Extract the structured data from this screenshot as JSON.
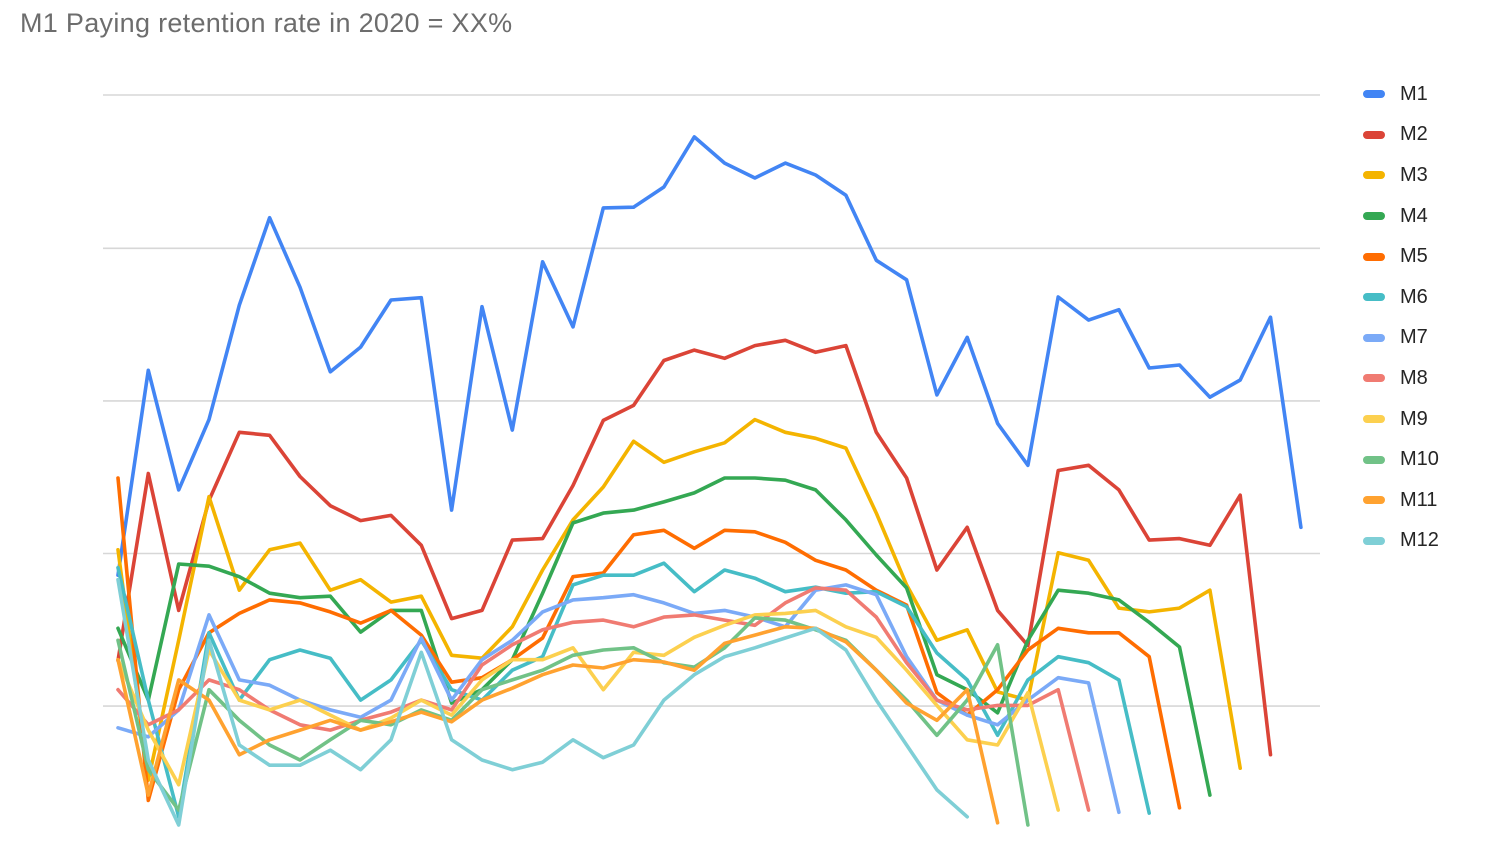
{
  "chart_data": {
    "type": "line",
    "title": "M1 Paying retention rate in 2020 = XX%",
    "title_color": "#6d6d6d",
    "xlabel": "",
    "ylabel": "",
    "x_axis_tick_labels": "none visible",
    "y_axis_tick_labels": "none visible",
    "x_count": 40,
    "ylim": [
      0,
      100
    ],
    "y_scale_note": "no numeric axis labels are visible in the image; values are estimated as percent of plot height above the bottom edge",
    "grid": "horizontal gridlines only",
    "gridline_color": "#d7d7d7",
    "gridlines_v": [
      100,
      79.5,
      59.1,
      38.7,
      18.3
    ],
    "legend_position": "right",
    "background": "#ffffff",
    "series": [
      {
        "name": "M1",
        "color": "#4285F4",
        "values": [
          35.8,
          63.2,
          47.2,
          56.6,
          71.9,
          83.6,
          74.3,
          63.0,
          66.3,
          72.6,
          72.9,
          44.5,
          71.7,
          55.2,
          77.7,
          69.0,
          84.9,
          85.0,
          87.7,
          94.4,
          90.9,
          88.9,
          90.9,
          89.3,
          86.6,
          77.9,
          75.3,
          59.9,
          67.6,
          56.1,
          50.5,
          73.0,
          69.9,
          71.3,
          63.5,
          63.9,
          59.6,
          61.9,
          70.3,
          42.2
        ]
      },
      {
        "name": "M2",
        "color": "#DB4437",
        "values": [
          24.4,
          49.4,
          31.1,
          45.8,
          54.9,
          54.5,
          49.0,
          45.1,
          43.1,
          43.8,
          39.8,
          30.0,
          31.1,
          40.5,
          40.7,
          47.8,
          56.5,
          58.5,
          64.5,
          65.9,
          64.8,
          66.5,
          67.2,
          65.6,
          66.5,
          54.9,
          48.8,
          36.5,
          42.2,
          31.1,
          26.4,
          49.8,
          50.5,
          47.2,
          40.5,
          40.7,
          39.8,
          46.5,
          11.8
        ]
      },
      {
        "name": "M3",
        "color": "#F4B400",
        "values": [
          39.2,
          8.4,
          27.1,
          46.3,
          33.8,
          39.2,
          40.1,
          33.8,
          35.2,
          32.2,
          33.0,
          25.1,
          24.7,
          28.9,
          36.5,
          43.2,
          47.6,
          53.7,
          50.9,
          52.3,
          53.5,
          56.6,
          54.9,
          54.1,
          52.8,
          44.1,
          34.5,
          27.1,
          28.5,
          20.2,
          19.1,
          38.8,
          37.8,
          31.4,
          30.9,
          31.4,
          33.8,
          10.0
        ]
      },
      {
        "name": "M4",
        "color": "#34A853",
        "values": [
          28.7,
          19.1,
          37.3,
          37.0,
          35.6,
          33.4,
          32.8,
          33.0,
          28.2,
          31.1,
          31.1,
          18.7,
          20.5,
          24.5,
          33.4,
          42.8,
          44.1,
          44.5,
          45.6,
          46.8,
          48.8,
          48.8,
          48.5,
          47.2,
          43.2,
          38.5,
          34.1,
          22.5,
          20.5,
          17.4,
          27.1,
          33.8,
          33.4,
          32.5,
          29.5,
          26.2,
          6.4
        ]
      },
      {
        "name": "M5",
        "color": "#FF6D01",
        "values": [
          48.8,
          5.7,
          20.5,
          28.1,
          30.7,
          32.5,
          32.1,
          30.9,
          29.4,
          31.1,
          27.8,
          21.5,
          22.1,
          24.5,
          27.4,
          35.6,
          36.1,
          41.2,
          41.8,
          39.4,
          41.8,
          41.6,
          40.2,
          37.8,
          36.5,
          33.8,
          31.8,
          20.1,
          17.1,
          20.5,
          25.8,
          28.7,
          28.1,
          28.1,
          24.9,
          4.7
        ]
      },
      {
        "name": "M6",
        "color": "#46BDC6",
        "values": [
          36.8,
          19.1,
          3.5,
          28.1,
          19.1,
          24.5,
          25.8,
          24.7,
          19.1,
          21.8,
          27.1,
          20.5,
          19.1,
          23.1,
          24.9,
          34.5,
          35.8,
          35.8,
          37.4,
          33.6,
          36.5,
          35.4,
          33.6,
          34.2,
          33.4,
          33.6,
          31.6,
          25.4,
          21.8,
          14.4,
          21.8,
          24.9,
          24.1,
          21.8,
          4.0
        ]
      },
      {
        "name": "M7",
        "color": "#7BAAF7",
        "values": [
          15.4,
          14.2,
          17.8,
          30.5,
          21.8,
          21.1,
          19.1,
          17.8,
          16.8,
          19.1,
          27.4,
          19.1,
          24.5,
          27.1,
          30.9,
          32.5,
          32.8,
          33.2,
          32.1,
          30.7,
          31.1,
          30.2,
          28.9,
          33.8,
          34.5,
          33.2,
          24.9,
          19.1,
          17.1,
          15.8,
          19.1,
          22.1,
          21.4,
          4.1
        ]
      },
      {
        "name": "M8",
        "color": "#F07B72",
        "values": [
          20.5,
          15.8,
          17.8,
          21.8,
          20.5,
          17.8,
          15.8,
          15.1,
          16.4,
          17.5,
          19.1,
          17.8,
          23.8,
          26.5,
          28.5,
          29.5,
          29.8,
          28.9,
          30.2,
          30.5,
          29.8,
          29.1,
          32.1,
          34.1,
          33.8,
          30.2,
          24.1,
          19.1,
          17.8,
          18.4,
          18.4,
          20.5,
          4.4
        ]
      },
      {
        "name": "M9",
        "color": "#FCD04F",
        "values": [
          24.5,
          15.1,
          7.8,
          25.8,
          19.1,
          17.8,
          19.1,
          17.1,
          15.1,
          16.7,
          19.1,
          17.1,
          21.8,
          24.5,
          24.5,
          26.1,
          20.5,
          25.5,
          25.1,
          27.5,
          29.1,
          30.5,
          30.7,
          31.1,
          28.9,
          27.5,
          23.1,
          18.4,
          13.8,
          13.1,
          20.1,
          4.4
        ]
      },
      {
        "name": "M10",
        "color": "#71C287",
        "values": [
          27.1,
          9.8,
          4.4,
          20.5,
          16.4,
          13.1,
          11.1,
          13.8,
          16.4,
          15.8,
          17.8,
          16.4,
          20.5,
          21.8,
          23.1,
          25.1,
          25.8,
          26.1,
          24.1,
          23.5,
          26.1,
          30.1,
          29.8,
          28.5,
          27.1,
          23.1,
          19.1,
          14.4,
          19.1,
          26.5,
          2.4
        ]
      },
      {
        "name": "M11",
        "color": "#FFA230",
        "values": [
          24.5,
          6.4,
          21.8,
          19.1,
          11.8,
          13.8,
          15.1,
          16.4,
          15.1,
          16.2,
          17.5,
          16.2,
          19.1,
          20.7,
          22.5,
          23.8,
          23.4,
          24.5,
          24.2,
          23.1,
          26.7,
          27.8,
          28.9,
          28.7,
          26.9,
          23.1,
          18.7,
          16.4,
          20.5,
          2.7
        ]
      },
      {
        "name": "M12",
        "color": "#7FCFD6",
        "values": [
          35.2,
          11.1,
          2.4,
          27.1,
          13.1,
          10.4,
          10.4,
          12.4,
          9.8,
          13.8,
          25.5,
          13.8,
          11.1,
          9.8,
          10.8,
          13.8,
          11.4,
          13.1,
          19.1,
          22.5,
          24.9,
          26.1,
          27.4,
          28.7,
          25.8,
          19.1,
          13.1,
          7.1,
          3.5
        ]
      }
    ]
  }
}
